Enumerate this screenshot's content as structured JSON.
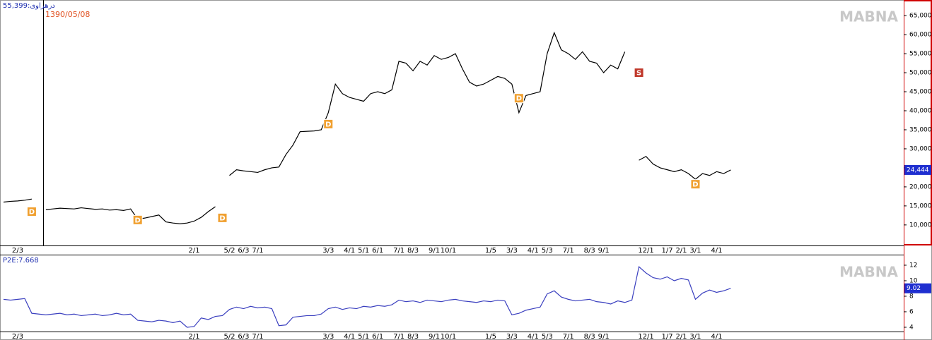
{
  "chart_data": [
    {
      "type": "line",
      "title": "55,399:درهراوی",
      "subtitle": "1390/05/08",
      "watermark": "MABNA",
      "color": "#000000",
      "categories": [
        null,
        null,
        "2/3",
        null,
        null,
        null,
        null,
        null,
        null,
        null,
        null,
        null,
        null,
        null,
        null,
        null,
        null,
        null,
        null,
        null,
        null,
        null,
        null,
        null,
        null,
        null,
        null,
        "2/1",
        null,
        null,
        null,
        null,
        "5/2",
        null,
        "6/3",
        null,
        "7/1",
        null,
        null,
        null,
        null,
        null,
        null,
        null,
        null,
        null,
        "3/3",
        null,
        null,
        "4/1",
        null,
        "5/1",
        null,
        "6/1",
        null,
        null,
        "7/1",
        null,
        "8/3",
        null,
        null,
        "9/1",
        null,
        "10/1",
        null,
        null,
        null,
        null,
        null,
        "1/5",
        null,
        null,
        "3/3",
        null,
        null,
        "4/1",
        null,
        "5/3",
        null,
        null,
        "7/1",
        null,
        null,
        "8/3",
        null,
        "9/1",
        null,
        null,
        null,
        null,
        null,
        "12/1",
        null,
        null,
        "1/7",
        null,
        "2/1",
        null,
        "3/1",
        null,
        null,
        "4/1",
        null,
        null,
        null,
        null,
        null,
        null,
        null,
        null,
        null,
        null,
        null,
        null,
        null,
        null,
        null,
        null,
        null,
        null,
        null,
        null,
        null,
        null,
        null,
        null,
        null,
        null
      ],
      "values": [
        16000,
        16200,
        16300,
        16500,
        16800,
        null,
        14000,
        14200,
        14400,
        14300,
        14200,
        14500,
        14300,
        14100,
        14200,
        13900,
        14000,
        13800,
        14200,
        11500,
        11800,
        12200,
        12600,
        10800,
        10500,
        10300,
        10500,
        11000,
        12000,
        13500,
        14800,
        null,
        23000,
        24500,
        24200,
        24000,
        23800,
        24500,
        25000,
        25200,
        28500,
        31000,
        34500,
        34600,
        34700,
        35000,
        39500,
        47000,
        44500,
        43500,
        43000,
        42500,
        44500,
        45000,
        44500,
        45500,
        53000,
        52500,
        50500,
        53000,
        52000,
        54500,
        53500,
        54000,
        55000,
        51000,
        47500,
        46500,
        47000,
        48000,
        49000,
        48500,
        47000,
        39500,
        44000,
        44500,
        45000,
        55000,
        60500,
        56000,
        55000,
        53500,
        55500,
        53000,
        52500,
        50000,
        52000,
        51000,
        55500,
        null,
        27000,
        28000,
        26000,
        25000,
        24500,
        24000,
        24500,
        23500,
        22000,
        23500,
        23000,
        24000,
        23500,
        24444,
        null,
        null,
        null,
        null,
        null,
        null,
        null,
        null,
        null,
        null,
        null,
        null,
        null,
        null,
        null,
        null,
        null,
        null,
        null,
        null,
        null,
        null,
        null,
        null
      ],
      "last_value_label": "24,444",
      "annotations": [
        {
          "text": "D",
          "index": 4,
          "value": 13500,
          "color": "#f0a030"
        },
        {
          "text": "D",
          "index": 19,
          "value": 11300,
          "color": "#f0a030"
        },
        {
          "text": "D",
          "index": 31,
          "value": 11850,
          "color": "#f0a030"
        },
        {
          "text": "D",
          "index": 46,
          "value": 36500,
          "color": "#f0a030"
        },
        {
          "text": "D",
          "index": 73,
          "value": 43300,
          "color": "#f0a030"
        },
        {
          "text": "D",
          "index": 98,
          "value": 20700,
          "color": "#f0a030"
        },
        {
          "text": "S",
          "index": 90,
          "value": 50000,
          "color": "#c0392b"
        }
      ],
      "ylim": [
        4600,
        69100
      ],
      "yticks": [
        {
          "value": 10000,
          "label": "10,000"
        },
        {
          "value": 15000,
          "label": "15,000"
        },
        {
          "value": 20000,
          "label": "20,000"
        },
        {
          "value": 25000,
          "label": "25,000"
        },
        {
          "value": 30000,
          "label": "30,000"
        },
        {
          "value": 35000,
          "label": "35,000"
        },
        {
          "value": 40000,
          "label": "40,000"
        },
        {
          "value": 45000,
          "label": "45,000"
        },
        {
          "value": 50000,
          "label": "50,000"
        },
        {
          "value": 55000,
          "label": "55,000"
        },
        {
          "value": 60000,
          "label": "60,000"
        },
        {
          "value": 65000,
          "label": "65,000"
        }
      ],
      "grid": false
    },
    {
      "type": "line",
      "title": "P2E:7.668",
      "watermark": "MABNA",
      "color": "#3a3fbf",
      "categories": [
        null,
        null,
        "2/3",
        null,
        null,
        null,
        null,
        null,
        null,
        null,
        null,
        null,
        null,
        null,
        null,
        null,
        null,
        null,
        null,
        null,
        null,
        null,
        null,
        null,
        null,
        null,
        null,
        "2/1",
        null,
        null,
        null,
        null,
        "5/2",
        null,
        "6/3",
        null,
        "7/1",
        null,
        null,
        null,
        null,
        null,
        null,
        null,
        null,
        null,
        "3/3",
        null,
        null,
        "4/1",
        null,
        "5/1",
        null,
        "6/1",
        null,
        null,
        "7/1",
        null,
        "8/3",
        null,
        null,
        "9/1",
        null,
        "10/1",
        null,
        null,
        null,
        null,
        null,
        "1/5",
        null,
        null,
        "3/3",
        null,
        null,
        "4/1",
        null,
        "5/3",
        null,
        null,
        "7/1",
        null,
        null,
        "8/3",
        null,
        "9/1",
        null,
        null,
        null,
        null,
        null,
        "12/1",
        null,
        null,
        "1/7",
        null,
        "2/1",
        null,
        "3/1",
        null,
        null,
        "4/1",
        null,
        null,
        null,
        null,
        null,
        null,
        null,
        null,
        null,
        null,
        null,
        null,
        null,
        null,
        null,
        null,
        null,
        null,
        null,
        null,
        null,
        null,
        null,
        null,
        null,
        null
      ],
      "values": [
        7.6,
        7.5,
        7.6,
        7.7,
        5.8,
        5.7,
        5.6,
        5.7,
        5.8,
        5.6,
        5.7,
        5.5,
        5.6,
        5.7,
        5.5,
        5.6,
        5.8,
        5.6,
        5.7,
        4.9,
        4.8,
        4.7,
        4.9,
        4.8,
        4.6,
        4.8,
        4.0,
        4.1,
        5.2,
        5.0,
        5.4,
        5.5,
        6.3,
        6.6,
        6.4,
        6.7,
        6.5,
        6.6,
        6.4,
        4.2,
        4.3,
        5.3,
        5.4,
        5.5,
        5.5,
        5.7,
        6.4,
        6.6,
        6.3,
        6.5,
        6.4,
        6.7,
        6.6,
        6.8,
        6.7,
        6.9,
        7.5,
        7.3,
        7.4,
        7.2,
        7.5,
        7.4,
        7.3,
        7.5,
        7.6,
        7.4,
        7.3,
        7.2,
        7.4,
        7.3,
        7.5,
        7.4,
        5.6,
        5.8,
        6.2,
        6.4,
        6.6,
        8.3,
        8.7,
        7.9,
        7.6,
        7.4,
        7.5,
        7.6,
        7.3,
        7.2,
        7.0,
        7.4,
        7.2,
        7.5,
        11.8,
        11.0,
        10.4,
        10.2,
        10.5,
        10.0,
        10.3,
        10.1,
        7.6,
        8.4,
        8.8,
        8.5,
        8.7,
        9.02,
        null,
        null,
        null,
        null,
        null,
        null,
        null,
        null,
        null,
        null,
        null,
        null,
        null,
        null,
        null,
        null,
        null,
        null,
        null,
        null,
        null,
        null,
        null,
        null
      ],
      "ylim": [
        3.45,
        13.27
      ],
      "yticks": [
        4,
        6,
        8,
        10,
        12
      ],
      "grid": false
    }
  ]
}
